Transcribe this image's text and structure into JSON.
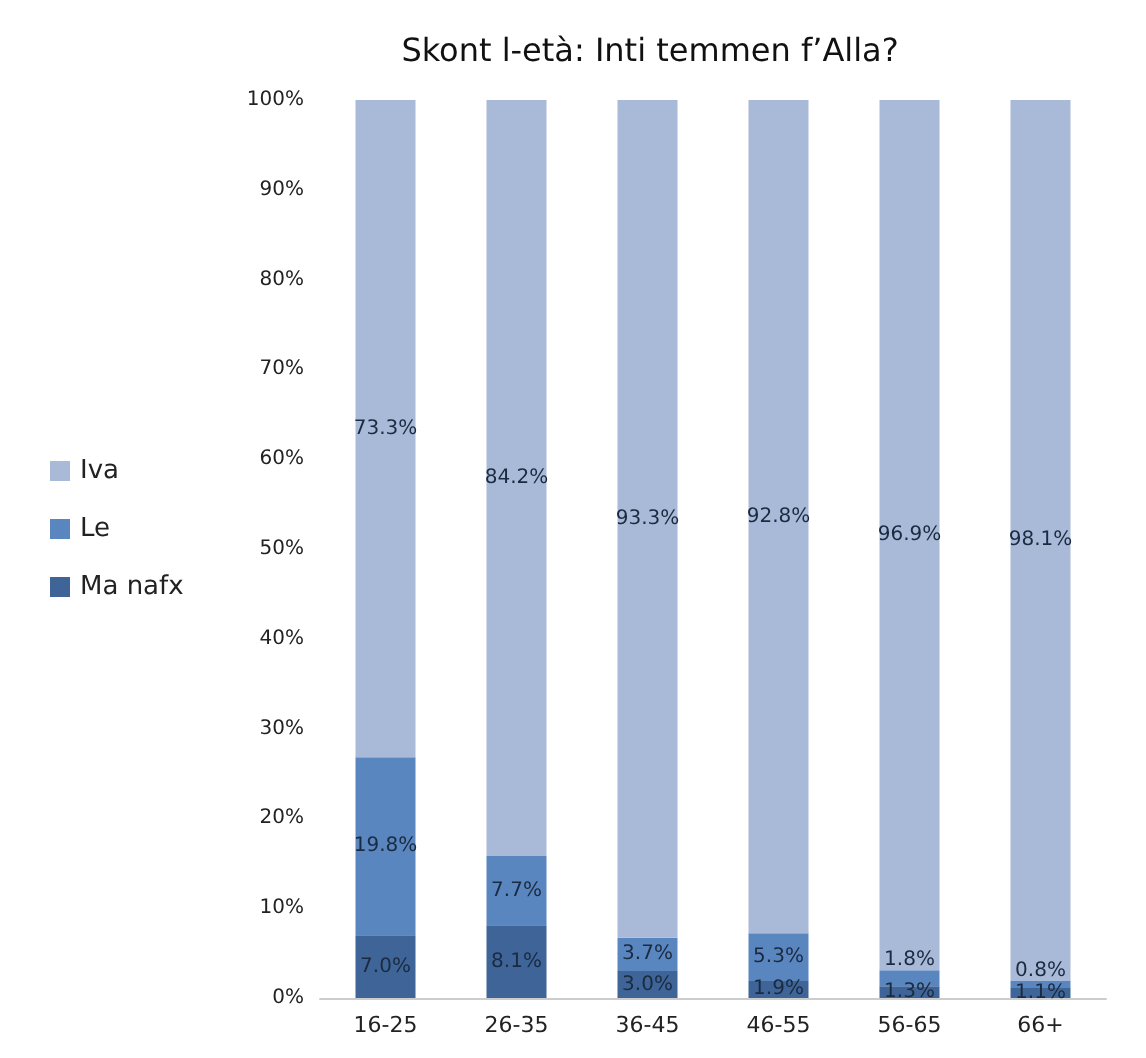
{
  "chart_data": {
    "type": "bar",
    "title": "Skont l-età: Inti temmen f’Alla?",
    "categories": [
      "16-25",
      "26-35",
      "36-45",
      "46-55",
      "56-65",
      "66+"
    ],
    "stacked": true,
    "legend": "left",
    "grid": false,
    "ylim": [
      0,
      100
    ],
    "yticks": [
      {
        "value": 0,
        "label": "0%"
      },
      {
        "value": 10,
        "label": "10%"
      },
      {
        "value": 20,
        "label": "20%"
      },
      {
        "value": 30,
        "label": "30%"
      },
      {
        "value": 40,
        "label": "40%"
      },
      {
        "value": 50,
        "label": "50%"
      },
      {
        "value": 60,
        "label": "60%"
      },
      {
        "value": 70,
        "label": "70%"
      },
      {
        "value": 80,
        "label": "80%"
      },
      {
        "value": 90,
        "label": "90%"
      },
      {
        "value": 100,
        "label": "100%"
      }
    ],
    "series": [
      {
        "name": "Ma nafx",
        "color": "#3f6598",
        "values": [
          7.0,
          8.1,
          3.0,
          1.9,
          1.3,
          1.1
        ],
        "value_labels": [
          "7.0%",
          "8.1%",
          "3.0%",
          "1.9%",
          "1.3%",
          "1.1%"
        ]
      },
      {
        "name": "Le",
        "color": "#5a86c0",
        "values": [
          19.8,
          7.7,
          3.7,
          5.3,
          1.8,
          0.8
        ],
        "value_labels": [
          "19.8%",
          "7.7%",
          "3.7%",
          "5.3%",
          "1.8%",
          "0.8%"
        ]
      },
      {
        "name": "Iva",
        "color": "#a9bad8",
        "values": [
          73.3,
          84.2,
          93.3,
          92.8,
          96.9,
          98.1
        ],
        "value_labels": [
          "73.3%",
          "84.2%",
          "93.3%",
          "92.8%",
          "96.9%",
          "98.1%"
        ]
      }
    ]
  }
}
